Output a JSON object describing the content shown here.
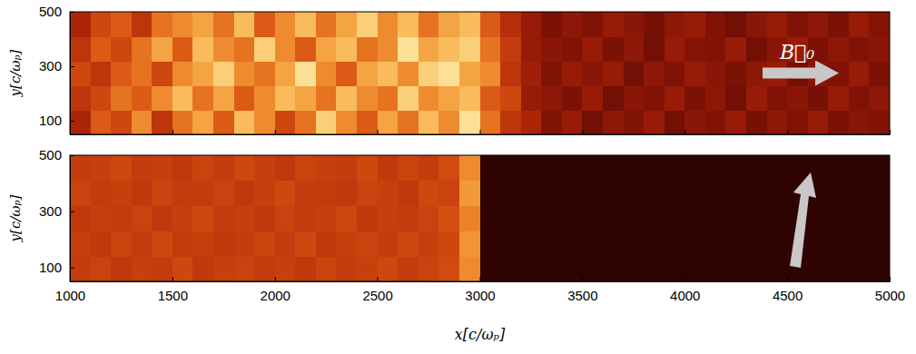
{
  "chart_data": [
    {
      "type": "heatmap",
      "y_label": "y[c/ωₚ]",
      "annotation": "B⃗₀",
      "tick_labels": "y",
      "xlim": [
        1000,
        5000
      ],
      "ylim": [
        50,
        500
      ],
      "xticks": [
        1000,
        1500,
        2000,
        2500,
        3000,
        3500,
        4000,
        4500,
        5000
      ],
      "yticks": [
        100,
        300,
        500
      ],
      "zlim": [
        0,
        1
      ],
      "x_bins": [
        1000,
        1100,
        1200,
        1300,
        1400,
        1500,
        1600,
        1700,
        1800,
        1900,
        2000,
        2100,
        2200,
        2300,
        2400,
        2500,
        2600,
        2700,
        2800,
        2900,
        3000,
        3100,
        3200,
        3300,
        3400,
        3500,
        3600,
        3700,
        3800,
        3900,
        4000,
        4100,
        4200,
        4300,
        4400,
        4500,
        4600,
        4700,
        4800,
        4900,
        5000
      ],
      "y_bins": [
        50,
        140,
        230,
        320,
        410,
        500
      ],
      "cells": [
        [
          0.35,
          0.5,
          0.45,
          0.6,
          0.4,
          0.55,
          0.65,
          0.5,
          0.7,
          0.6,
          0.45,
          0.55,
          0.75,
          0.6,
          0.5,
          0.65,
          0.55,
          0.7,
          0.6,
          0.8,
          0.55,
          0.4,
          0.35,
          0.25,
          0.3,
          0.22,
          0.28,
          0.25,
          0.3,
          0.22,
          0.27,
          0.25,
          0.3,
          0.23,
          0.28,
          0.25,
          0.3,
          0.24,
          0.27,
          0.25
        ],
        [
          0.4,
          0.45,
          0.55,
          0.5,
          0.6,
          0.7,
          0.55,
          0.65,
          0.5,
          0.6,
          0.7,
          0.65,
          0.55,
          0.7,
          0.6,
          0.55,
          0.75,
          0.6,
          0.65,
          0.7,
          0.5,
          0.45,
          0.3,
          0.28,
          0.24,
          0.3,
          0.22,
          0.27,
          0.25,
          0.3,
          0.24,
          0.28,
          0.22,
          0.3,
          0.25,
          0.27,
          0.23,
          0.3,
          0.25,
          0.28
        ],
        [
          0.45,
          0.4,
          0.5,
          0.55,
          0.45,
          0.6,
          0.65,
          0.75,
          0.6,
          0.55,
          0.65,
          0.8,
          0.6,
          0.5,
          0.65,
          0.7,
          0.6,
          0.75,
          0.8,
          0.65,
          0.6,
          0.4,
          0.32,
          0.25,
          0.3,
          0.27,
          0.3,
          0.22,
          0.28,
          0.25,
          0.3,
          0.27,
          0.24,
          0.28,
          0.3,
          0.22,
          0.27,
          0.25,
          0.3,
          0.24
        ],
        [
          0.4,
          0.5,
          0.45,
          0.55,
          0.65,
          0.5,
          0.7,
          0.6,
          0.55,
          0.75,
          0.6,
          0.5,
          0.65,
          0.7,
          0.55,
          0.6,
          0.8,
          0.65,
          0.7,
          0.75,
          0.55,
          0.42,
          0.3,
          0.27,
          0.25,
          0.3,
          0.24,
          0.28,
          0.22,
          0.3,
          0.26,
          0.25,
          0.3,
          0.22,
          0.27,
          0.3,
          0.24,
          0.28,
          0.25,
          0.27
        ],
        [
          0.35,
          0.45,
          0.5,
          0.4,
          0.55,
          0.6,
          0.65,
          0.55,
          0.7,
          0.5,
          0.6,
          0.7,
          0.55,
          0.65,
          0.75,
          0.6,
          0.7,
          0.55,
          0.65,
          0.7,
          0.5,
          0.38,
          0.3,
          0.24,
          0.28,
          0.25,
          0.3,
          0.27,
          0.23,
          0.28,
          0.3,
          0.25,
          0.22,
          0.27,
          0.3,
          0.25,
          0.28,
          0.24,
          0.3,
          0.26
        ]
      ]
    },
    {
      "type": "heatmap",
      "x_label": "x[c/ωₚ]",
      "y_label": "y[c/ωₚ]",
      "xlim": [
        1000,
        5000
      ],
      "ylim": [
        50,
        500
      ],
      "xticks": [
        1000,
        1500,
        2000,
        2500,
        3000,
        3500,
        4000,
        4500,
        5000
      ],
      "yticks": [
        100,
        300,
        500
      ],
      "zlim": [
        0,
        1
      ],
      "x_bins": [
        1000,
        1100,
        1200,
        1300,
        1400,
        1500,
        1600,
        1700,
        1800,
        1900,
        2000,
        2100,
        2200,
        2300,
        2400,
        2500,
        2600,
        2700,
        2800,
        2900,
        3000,
        3100,
        3200,
        3300,
        3400,
        3500,
        3600,
        3700,
        3800,
        3900,
        4000,
        4100,
        4200,
        4300,
        4400,
        4500,
        4600,
        4700,
        4800,
        4900,
        5000
      ],
      "y_bins": [
        50,
        140,
        230,
        320,
        410,
        500
      ],
      "cells": [
        [
          0.42,
          0.44,
          0.41,
          0.43,
          0.42,
          0.45,
          0.41,
          0.43,
          0.44,
          0.42,
          0.43,
          0.41,
          0.44,
          0.42,
          0.43,
          0.45,
          0.42,
          0.44,
          0.46,
          0.6,
          0.06,
          0.06,
          0.06,
          0.06,
          0.06,
          0.06,
          0.06,
          0.06,
          0.06,
          0.06,
          0.06,
          0.06,
          0.06,
          0.06,
          0.06,
          0.06,
          0.06,
          0.06,
          0.06,
          0.06
        ],
        [
          0.43,
          0.41,
          0.44,
          0.42,
          0.45,
          0.42,
          0.43,
          0.41,
          0.42,
          0.44,
          0.42,
          0.45,
          0.41,
          0.43,
          0.44,
          0.42,
          0.45,
          0.43,
          0.45,
          0.62,
          0.06,
          0.06,
          0.06,
          0.06,
          0.06,
          0.06,
          0.06,
          0.06,
          0.06,
          0.06,
          0.06,
          0.06,
          0.06,
          0.06,
          0.06,
          0.06,
          0.06,
          0.06,
          0.06,
          0.06
        ],
        [
          0.41,
          0.43,
          0.42,
          0.44,
          0.41,
          0.43,
          0.45,
          0.42,
          0.43,
          0.41,
          0.44,
          0.42,
          0.43,
          0.45,
          0.41,
          0.43,
          0.42,
          0.44,
          0.47,
          0.58,
          0.06,
          0.06,
          0.06,
          0.06,
          0.06,
          0.06,
          0.06,
          0.06,
          0.06,
          0.06,
          0.06,
          0.06,
          0.06,
          0.06,
          0.06,
          0.06,
          0.06,
          0.06,
          0.06,
          0.06
        ],
        [
          0.44,
          0.42,
          0.43,
          0.41,
          0.44,
          0.42,
          0.42,
          0.44,
          0.41,
          0.43,
          0.45,
          0.42,
          0.42,
          0.41,
          0.44,
          0.43,
          0.41,
          0.45,
          0.44,
          0.63,
          0.06,
          0.06,
          0.06,
          0.06,
          0.06,
          0.06,
          0.06,
          0.06,
          0.06,
          0.06,
          0.06,
          0.06,
          0.06,
          0.06,
          0.06,
          0.06,
          0.06,
          0.06,
          0.06,
          0.06
        ],
        [
          0.42,
          0.43,
          0.45,
          0.42,
          0.43,
          0.41,
          0.44,
          0.42,
          0.45,
          0.43,
          0.41,
          0.44,
          0.43,
          0.42,
          0.45,
          0.41,
          0.44,
          0.42,
          0.46,
          0.6,
          0.06,
          0.06,
          0.06,
          0.06,
          0.06,
          0.06,
          0.06,
          0.06,
          0.06,
          0.06,
          0.06,
          0.06,
          0.06,
          0.06,
          0.06,
          0.06,
          0.06,
          0.06,
          0.06,
          0.06
        ]
      ]
    }
  ]
}
